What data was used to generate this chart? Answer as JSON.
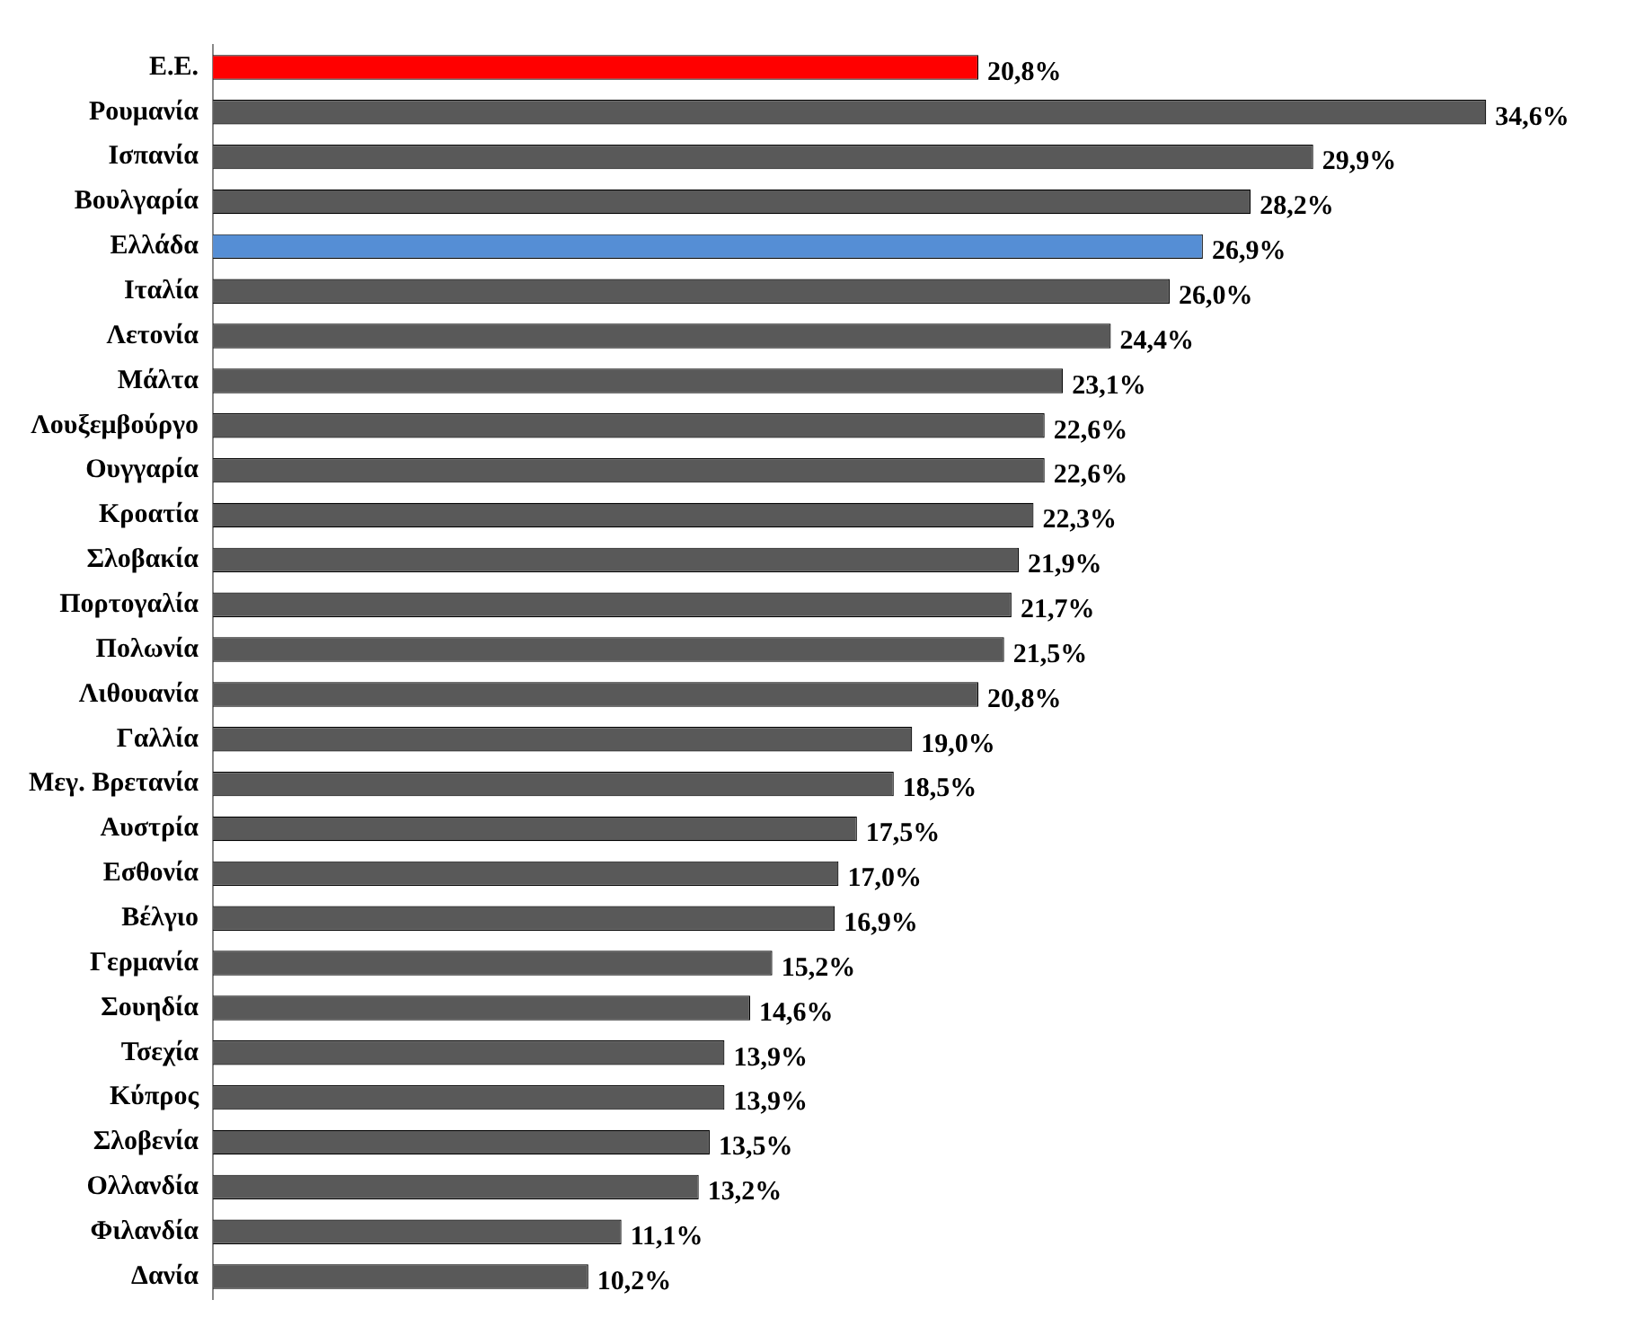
{
  "chart_data": {
    "type": "bar",
    "orientation": "horizontal",
    "categories": [
      "Ε.Ε.",
      "Ρουμανία",
      "Ισπανία",
      "Βουλγαρία",
      "Ελλάδα",
      "Ιταλία",
      "Λετονία",
      "Μάλτα",
      "Λουξεμβούργο",
      "Ουγγαρία",
      "Κροατία",
      "Σλοβακία",
      "Πορτογαλία",
      "Πολωνία",
      "Λιθουανία",
      "Γαλλία",
      "Μεγ. Βρετανία",
      "Αυστρία",
      "Εσθονία",
      "Βέλγιο",
      "Γερμανία",
      "Σουηδία",
      "Τσεχία",
      "Κύπρος",
      "Σλοβενία",
      "Ολλανδία",
      "Φιλανδία",
      "Δανία"
    ],
    "values": [
      20.8,
      34.6,
      29.9,
      28.2,
      26.9,
      26.0,
      24.4,
      23.1,
      22.6,
      22.6,
      22.3,
      21.9,
      21.7,
      21.5,
      20.8,
      19.0,
      18.5,
      17.5,
      17.0,
      16.9,
      15.2,
      14.6,
      13.9,
      13.9,
      13.5,
      13.2,
      11.1,
      10.2
    ],
    "colors": [
      "#ff0000",
      "#595959",
      "#595959",
      "#595959",
      "#558ed5",
      "#595959",
      "#595959",
      "#595959",
      "#595959",
      "#595959",
      "#595959",
      "#595959",
      "#595959",
      "#595959",
      "#595959",
      "#595959",
      "#595959",
      "#595959",
      "#595959",
      "#595959",
      "#595959",
      "#595959",
      "#595959",
      "#595959",
      "#595959",
      "#595959",
      "#595959",
      "#595959"
    ],
    "value_labels": [
      "20,8%",
      "34,6%",
      "29,9%",
      "28,2%",
      "26,9%",
      "26,0%",
      "24,4%",
      "23,1%",
      "22,6%",
      "22,6%",
      "22,3%",
      "21,9%",
      "21,7%",
      "21,5%",
      "20,8%",
      "19,0%",
      "18,5%",
      "17,5%",
      "17,0%",
      "16,9%",
      "15,2%",
      "14,6%",
      "13,9%",
      "13,9%",
      "13,5%",
      "13,2%",
      "11,1%",
      "10,2%"
    ]
  }
}
